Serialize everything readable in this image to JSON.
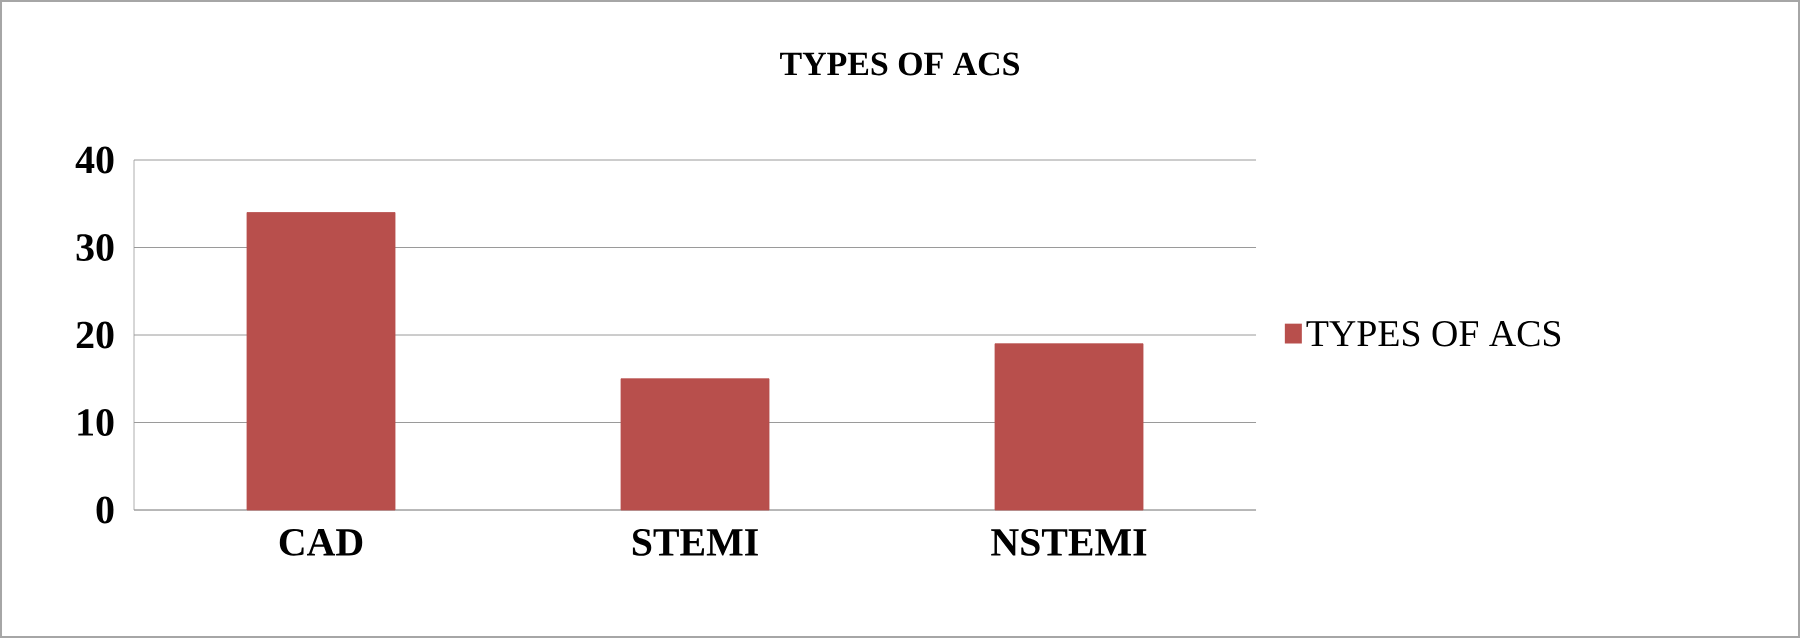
{
  "chart_data": {
    "type": "bar",
    "title": "TYPES OF ACS",
    "categories": [
      "CAD",
      "STEMI",
      "NSTEMI"
    ],
    "series": [
      {
        "name": "TYPES OF ACS",
        "color": "#b84f4c",
        "values": [
          34,
          15,
          19
        ]
      }
    ],
    "ylim": [
      0,
      40
    ],
    "yticks": [
      0,
      10,
      20,
      30,
      40
    ],
    "grid": "y",
    "legend": "right"
  }
}
